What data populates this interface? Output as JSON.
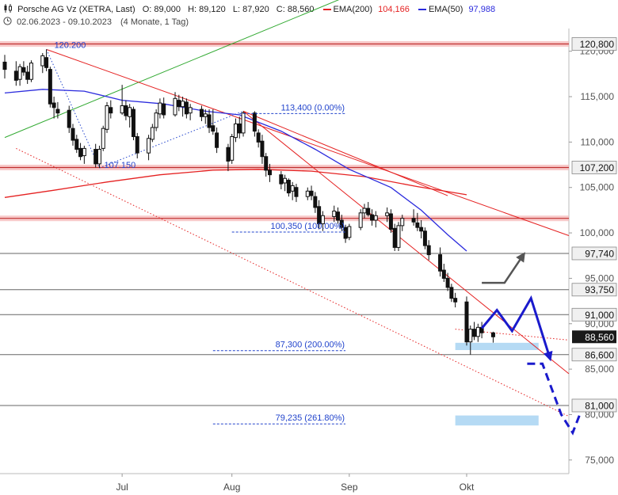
{
  "header": {
    "title": "Porsche AG Vz (XETRA, Last)",
    "open": "O: 89,000",
    "high": "H: 89,120",
    "low": "L: 87,920",
    "close": "C: 88,560",
    "ema200_label": "EMA(200)",
    "ema200_value": "104,166",
    "ema50_label": "EMA(50)",
    "ema50_value": "97,988",
    "range": "02.06.2023 - 09.10.2023",
    "period": "(4 Monate, 1 Tag)"
  },
  "colors": {
    "ema200": "#e52222",
    "ema50": "#2b2bdd",
    "fib": "#2244cc",
    "hband": "#f5b3b3",
    "hline": "#666666",
    "uptrend": "#33aa33",
    "projection": "#1a1acc",
    "projection_alt": "#555555",
    "zone": "#a8d4f2",
    "price_tag": "#1a1a1a"
  },
  "chart_data": {
    "type": "candlestick",
    "y_axis": {
      "range": [
        73.5,
        122.5
      ],
      "ticks": [
        75,
        80,
        85,
        90,
        95,
        100,
        105,
        110,
        115,
        120
      ],
      "tick_labels": [
        "75,000",
        "80,000",
        "85,000",
        "90,000",
        "95,000",
        "100,000",
        "105,000",
        "110,000",
        "115,000",
        "120,000"
      ]
    },
    "x_axis": {
      "range": [
        "2023-06-02",
        "2023-10-29"
      ],
      "labels": [
        {
          "date": "2023-07-03",
          "label": "Jul"
        },
        {
          "date": "2023-08-01",
          "label": "Aug"
        },
        {
          "date": "2023-09-01",
          "label": "Sep"
        },
        {
          "date": "2023-10-02",
          "label": "Okt"
        }
      ]
    },
    "candles": [
      {
        "d": "2023-06-02",
        "o": 118.8,
        "h": 119.6,
        "l": 117.0,
        "c": 118.0
      },
      {
        "d": "2023-06-05",
        "o": 117.8,
        "h": 118.9,
        "l": 116.2,
        "c": 116.8
      },
      {
        "d": "2023-06-06",
        "o": 116.9,
        "h": 118.6,
        "l": 116.2,
        "c": 118.3
      },
      {
        "d": "2023-06-07",
        "o": 118.2,
        "h": 118.9,
        "l": 117.3,
        "c": 117.7
      },
      {
        "d": "2023-06-08",
        "o": 117.7,
        "h": 118.4,
        "l": 116.4,
        "c": 116.9
      },
      {
        "d": "2023-06-09",
        "o": 116.9,
        "h": 119.0,
        "l": 116.6,
        "c": 118.7
      },
      {
        "d": "2023-06-12",
        "o": 118.4,
        "h": 119.8,
        "l": 117.6,
        "c": 119.5
      },
      {
        "d": "2023-06-13",
        "o": 119.3,
        "h": 120.2,
        "l": 117.8,
        "c": 118.2
      },
      {
        "d": "2023-06-14",
        "o": 118.0,
        "h": 118.3,
        "l": 113.8,
        "c": 114.2
      },
      {
        "d": "2023-06-15",
        "o": 114.3,
        "h": 115.0,
        "l": 112.6,
        "c": 113.8
      },
      {
        "d": "2023-06-16",
        "o": 113.6,
        "h": 114.4,
        "l": 112.6,
        "c": 113.2
      },
      {
        "d": "2023-06-19",
        "o": 113.5,
        "h": 114.0,
        "l": 111.0,
        "c": 111.6
      },
      {
        "d": "2023-06-20",
        "o": 111.5,
        "h": 112.0,
        "l": 109.6,
        "c": 110.2
      },
      {
        "d": "2023-06-21",
        "o": 110.3,
        "h": 110.8,
        "l": 108.8,
        "c": 109.2
      },
      {
        "d": "2023-06-22",
        "o": 109.3,
        "h": 109.9,
        "l": 108.0,
        "c": 108.4
      },
      {
        "d": "2023-06-23",
        "o": 108.5,
        "h": 109.6,
        "l": 107.6,
        "c": 109.3
      },
      {
        "d": "2023-06-26",
        "o": 109.2,
        "h": 109.8,
        "l": 107.2,
        "c": 107.6
      },
      {
        "d": "2023-06-27",
        "o": 107.6,
        "h": 109.6,
        "l": 107.15,
        "c": 109.2
      },
      {
        "d": "2023-06-28",
        "o": 109.3,
        "h": 111.8,
        "l": 109.0,
        "c": 111.5
      },
      {
        "d": "2023-06-29",
        "o": 111.4,
        "h": 114.4,
        "l": 111.0,
        "c": 114.0
      },
      {
        "d": "2023-06-30",
        "o": 113.8,
        "h": 114.6,
        "l": 112.6,
        "c": 113.2
      },
      {
        "d": "2023-07-03",
        "o": 113.2,
        "h": 116.3,
        "l": 113.0,
        "c": 114.0
      },
      {
        "d": "2023-07-04",
        "o": 114.0,
        "h": 114.6,
        "l": 112.4,
        "c": 112.9
      },
      {
        "d": "2023-07-05",
        "o": 112.8,
        "h": 114.2,
        "l": 111.6,
        "c": 113.8
      },
      {
        "d": "2023-07-06",
        "o": 113.6,
        "h": 113.9,
        "l": 110.2,
        "c": 110.6
      },
      {
        "d": "2023-07-07",
        "o": 110.6,
        "h": 111.0,
        "l": 108.2,
        "c": 108.8
      },
      {
        "d": "2023-07-10",
        "o": 108.8,
        "h": 110.8,
        "l": 108.0,
        "c": 110.4
      },
      {
        "d": "2023-07-11",
        "o": 110.3,
        "h": 112.0,
        "l": 110.0,
        "c": 111.6
      },
      {
        "d": "2023-07-12",
        "o": 111.6,
        "h": 113.6,
        "l": 111.2,
        "c": 113.2
      },
      {
        "d": "2023-07-13",
        "o": 113.1,
        "h": 114.8,
        "l": 112.6,
        "c": 114.3
      },
      {
        "d": "2023-07-14",
        "o": 114.2,
        "h": 114.9,
        "l": 112.6,
        "c": 113.0
      },
      {
        "d": "2023-07-17",
        "o": 113.0,
        "h": 115.5,
        "l": 112.8,
        "c": 114.8
      },
      {
        "d": "2023-07-18",
        "o": 114.6,
        "h": 115.2,
        "l": 113.4,
        "c": 113.9
      },
      {
        "d": "2023-07-19",
        "o": 113.9,
        "h": 115.0,
        "l": 112.8,
        "c": 114.5
      },
      {
        "d": "2023-07-20",
        "o": 114.4,
        "h": 114.8,
        "l": 112.6,
        "c": 113.1
      },
      {
        "d": "2023-07-21",
        "o": 113.2,
        "h": 114.2,
        "l": 112.4,
        "c": 113.8
      },
      {
        "d": "2023-07-24",
        "o": 113.6,
        "h": 114.0,
        "l": 112.3,
        "c": 112.8
      },
      {
        "d": "2023-07-25",
        "o": 112.8,
        "h": 113.6,
        "l": 112.0,
        "c": 113.1
      },
      {
        "d": "2023-07-26",
        "o": 113.0,
        "h": 113.6,
        "l": 111.0,
        "c": 111.6
      },
      {
        "d": "2023-07-27",
        "o": 111.8,
        "h": 113.6,
        "l": 110.8,
        "c": 111.2
      },
      {
        "d": "2023-07-28",
        "o": 111.0,
        "h": 111.6,
        "l": 108.8,
        "c": 109.4
      },
      {
        "d": "2023-07-31",
        "o": 109.4,
        "h": 109.8,
        "l": 106.8,
        "c": 107.9
      },
      {
        "d": "2023-08-01",
        "o": 108.0,
        "h": 110.9,
        "l": 107.6,
        "c": 110.6
      },
      {
        "d": "2023-08-02",
        "o": 110.5,
        "h": 112.6,
        "l": 110.0,
        "c": 112.0
      },
      {
        "d": "2023-08-03",
        "o": 112.0,
        "h": 112.8,
        "l": 110.4,
        "c": 111.0
      },
      {
        "d": "2023-08-04",
        "o": 111.0,
        "h": 113.4,
        "l": 110.6,
        "c": 113.2
      },
      {
        "d": "2023-08-07",
        "o": 113.2,
        "h": 113.4,
        "l": 110.6,
        "c": 111.2
      },
      {
        "d": "2023-08-08",
        "o": 111.0,
        "h": 111.4,
        "l": 109.4,
        "c": 110.0
      },
      {
        "d": "2023-08-09",
        "o": 110.1,
        "h": 110.8,
        "l": 107.6,
        "c": 108.4
      },
      {
        "d": "2023-08-10",
        "o": 108.4,
        "h": 108.8,
        "l": 106.2,
        "c": 106.9
      },
      {
        "d": "2023-08-11",
        "o": 106.9,
        "h": 107.6,
        "l": 105.6,
        "c": 106.4
      },
      {
        "d": "2023-08-14",
        "o": 106.4,
        "h": 106.8,
        "l": 104.8,
        "c": 105.4
      },
      {
        "d": "2023-08-15",
        "o": 105.5,
        "h": 106.4,
        "l": 104.6,
        "c": 106.0
      },
      {
        "d": "2023-08-16",
        "o": 105.8,
        "h": 106.0,
        "l": 104.0,
        "c": 104.4
      },
      {
        "d": "2023-08-17",
        "o": 104.6,
        "h": 105.6,
        "l": 103.6,
        "c": 105.2
      },
      {
        "d": "2023-08-18",
        "o": 105.0,
        "h": 105.4,
        "l": 103.4,
        "c": 104.0
      },
      {
        "d": "2023-08-21",
        "o": 104.0,
        "h": 105.0,
        "l": 103.6,
        "c": 104.6
      },
      {
        "d": "2023-08-22",
        "o": 104.6,
        "h": 105.2,
        "l": 103.6,
        "c": 104.1
      },
      {
        "d": "2023-08-23",
        "o": 104.0,
        "h": 104.5,
        "l": 102.2,
        "c": 102.8
      },
      {
        "d": "2023-08-24",
        "o": 102.9,
        "h": 103.6,
        "l": 100.4,
        "c": 101.0
      },
      {
        "d": "2023-08-25",
        "o": 101.0,
        "h": 102.4,
        "l": 100.2,
        "c": 101.9
      },
      {
        "d": "2023-08-28",
        "o": 101.8,
        "h": 103.0,
        "l": 101.2,
        "c": 102.4
      },
      {
        "d": "2023-08-29",
        "o": 102.3,
        "h": 102.8,
        "l": 101.0,
        "c": 101.4
      },
      {
        "d": "2023-08-30",
        "o": 101.4,
        "h": 102.0,
        "l": 100.2,
        "c": 100.6
      },
      {
        "d": "2023-08-31",
        "o": 100.6,
        "h": 100.9,
        "l": 98.9,
        "c": 99.4
      },
      {
        "d": "2023-09-01",
        "o": 99.5,
        "h": 101.0,
        "l": 99.2,
        "c": 100.7
      },
      {
        "d": "2023-09-04",
        "o": 100.6,
        "h": 102.6,
        "l": 100.3,
        "c": 102.2
      },
      {
        "d": "2023-09-05",
        "o": 102.2,
        "h": 103.2,
        "l": 101.6,
        "c": 102.7
      },
      {
        "d": "2023-09-06",
        "o": 102.7,
        "h": 103.4,
        "l": 101.8,
        "c": 102.0
      },
      {
        "d": "2023-09-07",
        "o": 102.0,
        "h": 102.6,
        "l": 100.8,
        "c": 101.4
      },
      {
        "d": "2023-09-08",
        "o": 101.4,
        "h": 102.4,
        "l": 100.6,
        "c": 101.9
      },
      {
        "d": "2023-09-11",
        "o": 101.9,
        "h": 102.8,
        "l": 101.2,
        "c": 102.2
      },
      {
        "d": "2023-09-12",
        "o": 102.1,
        "h": 102.6,
        "l": 100.0,
        "c": 100.4
      },
      {
        "d": "2023-09-13",
        "o": 100.5,
        "h": 101.0,
        "l": 98.0,
        "c": 98.4
      },
      {
        "d": "2023-09-14",
        "o": 98.4,
        "h": 101.2,
        "l": 98.0,
        "c": 100.8
      },
      {
        "d": "2023-09-15",
        "o": 100.8,
        "h": 102.0,
        "l": 100.2,
        "c": 101.6
      },
      {
        "d": "2023-09-18",
        "o": 101.6,
        "h": 102.6,
        "l": 100.8,
        "c": 101.2
      },
      {
        "d": "2023-09-19",
        "o": 101.1,
        "h": 102.2,
        "l": 100.2,
        "c": 100.6
      },
      {
        "d": "2023-09-20",
        "o": 100.6,
        "h": 101.4,
        "l": 99.4,
        "c": 100.2
      },
      {
        "d": "2023-09-21",
        "o": 100.2,
        "h": 100.6,
        "l": 98.2,
        "c": 98.6
      },
      {
        "d": "2023-09-22",
        "o": 98.6,
        "h": 99.2,
        "l": 97.0,
        "c": 97.6
      },
      {
        "d": "2023-09-25",
        "o": 97.6,
        "h": 98.4,
        "l": 95.2,
        "c": 95.8
      },
      {
        "d": "2023-09-26",
        "o": 95.9,
        "h": 96.6,
        "l": 94.6,
        "c": 95.0
      },
      {
        "d": "2023-09-27",
        "o": 95.0,
        "h": 95.6,
        "l": 93.6,
        "c": 94.0
      },
      {
        "d": "2023-09-28",
        "o": 94.0,
        "h": 94.4,
        "l": 92.4,
        "c": 92.8
      },
      {
        "d": "2023-09-29",
        "o": 92.8,
        "h": 93.4,
        "l": 91.8,
        "c": 92.4
      },
      {
        "d": "2023-10-02",
        "o": 92.4,
        "h": 93.0,
        "l": 87.6,
        "c": 88.0
      },
      {
        "d": "2023-10-03",
        "o": 88.0,
        "h": 89.8,
        "l": 86.6,
        "c": 89.4
      },
      {
        "d": "2023-10-04",
        "o": 89.4,
        "h": 90.2,
        "l": 88.2,
        "c": 88.6
      },
      {
        "d": "2023-10-05",
        "o": 88.6,
        "h": 90.0,
        "l": 88.0,
        "c": 89.6
      },
      {
        "d": "2023-10-06",
        "o": 89.6,
        "h": 90.2,
        "l": 88.4,
        "c": 89.0
      },
      {
        "d": "2023-10-09",
        "o": 89.0,
        "h": 89.12,
        "l": 87.92,
        "c": 88.56
      }
    ],
    "ema200": [
      {
        "d": "2023-06-02",
        "v": 103.9
      },
      {
        "d": "2023-06-15",
        "v": 104.7
      },
      {
        "d": "2023-06-29",
        "v": 105.6
      },
      {
        "d": "2023-07-13",
        "v": 106.4
      },
      {
        "d": "2023-07-27",
        "v": 106.9
      },
      {
        "d": "2023-08-08",
        "v": 107.0
      },
      {
        "d": "2023-08-22",
        "v": 106.8
      },
      {
        "d": "2023-09-05",
        "v": 106.2
      },
      {
        "d": "2023-09-19",
        "v": 105.1
      },
      {
        "d": "2023-10-02",
        "v": 104.2
      }
    ],
    "ema50": [
      {
        "d": "2023-06-02",
        "v": 115.4
      },
      {
        "d": "2023-06-12",
        "v": 115.8
      },
      {
        "d": "2023-06-23",
        "v": 115.6
      },
      {
        "d": "2023-07-03",
        "v": 114.6
      },
      {
        "d": "2023-07-14",
        "v": 114.2
      },
      {
        "d": "2023-07-25",
        "v": 113.4
      },
      {
        "d": "2023-08-03",
        "v": 113.0
      },
      {
        "d": "2023-08-14",
        "v": 111.2
      },
      {
        "d": "2023-08-23",
        "v": 109.2
      },
      {
        "d": "2023-09-01",
        "v": 107.0
      },
      {
        "d": "2023-09-12",
        "v": 105.0
      },
      {
        "d": "2023-09-20",
        "v": 102.5
      },
      {
        "d": "2023-09-27",
        "v": 99.8
      },
      {
        "d": "2023-10-02",
        "v": 98.0
      }
    ],
    "hbands": [
      120.8,
      107.2,
      101.6
    ],
    "hlines": [
      97.74,
      93.75,
      91.0,
      86.6,
      81.0
    ],
    "price_labels": [
      {
        "v": 120.8,
        "label": "120,800"
      },
      {
        "v": 107.2,
        "label": "107,200"
      },
      {
        "v": 97.74,
        "label": "97,740"
      },
      {
        "v": 93.75,
        "label": "93,750"
      },
      {
        "v": 91.0,
        "label": "91,000"
      },
      {
        "v": 86.6,
        "label": "86,600"
      },
      {
        "v": 81.0,
        "label": "81,000"
      }
    ],
    "last_price": {
      "v": 88.56,
      "label": "88,560"
    },
    "fib_levels": [
      {
        "v": 113.4,
        "label": "113,400 (0.00%)",
        "x0": "2023-08-03",
        "x1": "2023-08-31"
      },
      {
        "v": 100.35,
        "label": "100,350 (100.00%)",
        "x0": "2023-08-01",
        "x1": "2023-08-31"
      },
      {
        "v": 87.3,
        "label": "87,300 (200.00%)",
        "x0": "2023-07-27",
        "x1": "2023-08-31"
      },
      {
        "v": 79.235,
        "label": "79,235 (261.80%)",
        "x0": "2023-07-27",
        "x1": "2023-08-31"
      }
    ],
    "point_labels": [
      {
        "d": "2023-06-13",
        "v": 120.2,
        "label": "120.200"
      },
      {
        "d": "2023-06-27",
        "v": 107.15,
        "label": "107.150"
      }
    ],
    "trendlines": [
      {
        "kind": "up",
        "p1": {
          "d": "2023-06-02",
          "v": 110.5
        },
        "p2": {
          "d": "2023-08-30",
          "v": 125.8
        }
      },
      {
        "kind": "down",
        "p1": {
          "d": "2023-06-13",
          "v": 120.2
        },
        "p2": {
          "d": "2023-10-29",
          "v": 99.7
        }
      },
      {
        "kind": "down",
        "p1": {
          "d": "2023-08-04",
          "v": 113.4
        },
        "p2": {
          "d": "2023-10-29",
          "v": 84.5
        }
      },
      {
        "kind": "down",
        "p1": {
          "d": "2023-08-04",
          "v": 113.4
        },
        "p2": {
          "d": "2023-09-27",
          "v": 104.1
        }
      },
      {
        "kind": "dotted",
        "p1": {
          "d": "2023-06-05",
          "v": 109.3
        },
        "p2": {
          "d": "2023-10-29",
          "v": 79.8
        }
      },
      {
        "kind": "dotted-up",
        "p1": {
          "d": "2023-09-29",
          "v": 89.4
        },
        "p2": {
          "d": "2023-10-29",
          "v": 88.2
        }
      },
      {
        "kind": "dotted-blue",
        "p1": {
          "d": "2023-06-13",
          "v": 120.2
        },
        "p2": {
          "d": "2023-06-27",
          "v": 107.15
        }
      },
      {
        "kind": "dotted-blue",
        "p1": {
          "d": "2023-06-27",
          "v": 107.15
        },
        "p2": {
          "d": "2023-08-04",
          "v": 113.4
        }
      }
    ],
    "zones": [
      {
        "d0": "2023-09-29",
        "d1": "2023-10-21",
        "v0": 87.1,
        "v1": 87.9
      },
      {
        "d0": "2023-09-29",
        "d1": "2023-10-21",
        "v0": 78.8,
        "v1": 79.9
      }
    ],
    "projections": [
      {
        "style": "solid",
        "color": "projection_alt",
        "points": [
          {
            "d": "2023-10-06",
            "v": 94.5
          },
          {
            "d": "2023-10-12",
            "v": 94.5
          },
          {
            "d": "2023-10-17",
            "v": 97.6
          }
        ]
      },
      {
        "style": "solid",
        "color": "projection",
        "points": [
          {
            "d": "2023-10-06",
            "v": 89.5
          },
          {
            "d": "2023-10-10",
            "v": 91.5
          },
          {
            "d": "2023-10-14",
            "v": 89.2
          },
          {
            "d": "2023-10-19",
            "v": 92.8
          },
          {
            "d": "2023-10-24",
            "v": 86.2
          }
        ]
      },
      {
        "style": "dashed",
        "color": "projection",
        "points": [
          {
            "d": "2023-10-18",
            "v": 85.6
          },
          {
            "d": "2023-10-22",
            "v": 85.6
          },
          {
            "d": "2023-10-27",
            "v": 80.0
          },
          {
            "d": "2023-10-30",
            "v": 78.0
          },
          {
            "d": "2023-11-02",
            "v": 81.2
          }
        ]
      }
    ]
  }
}
